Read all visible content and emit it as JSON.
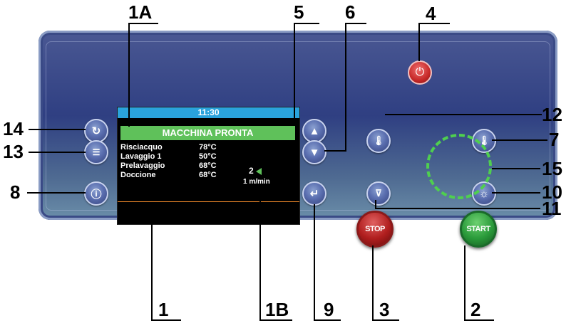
{
  "screen": {
    "time": "11:30",
    "status": "MACCHINA PRONTA",
    "rows": [
      {
        "label": "Risciacquo",
        "value": "78°C"
      },
      {
        "label": "Lavaggio 1",
        "value": "50°C"
      },
      {
        "label": "Prelavaggio",
        "value": "68°C"
      },
      {
        "label": "Doccione",
        "value": "68°C"
      }
    ],
    "speed_level": "2",
    "speed_unit": "1 m/min"
  },
  "buttons": {
    "stop_label": "STOP",
    "start_label": "START"
  },
  "callouts": {
    "c1A": "1A",
    "c5": "5",
    "c6": "6",
    "c4": "4",
    "c14": "14",
    "c13": "13",
    "c8": "8",
    "c12": "12",
    "c7": "7",
    "c15": "15",
    "c10": "10",
    "c11": "11",
    "c1": "1",
    "c1B": "1B",
    "c9": "9",
    "c3": "3",
    "c2": "2"
  },
  "colors": {
    "status_green": "#5fc15a",
    "topbar_blue": "#2aa3dc",
    "ring_green": "#4fcf4f"
  }
}
